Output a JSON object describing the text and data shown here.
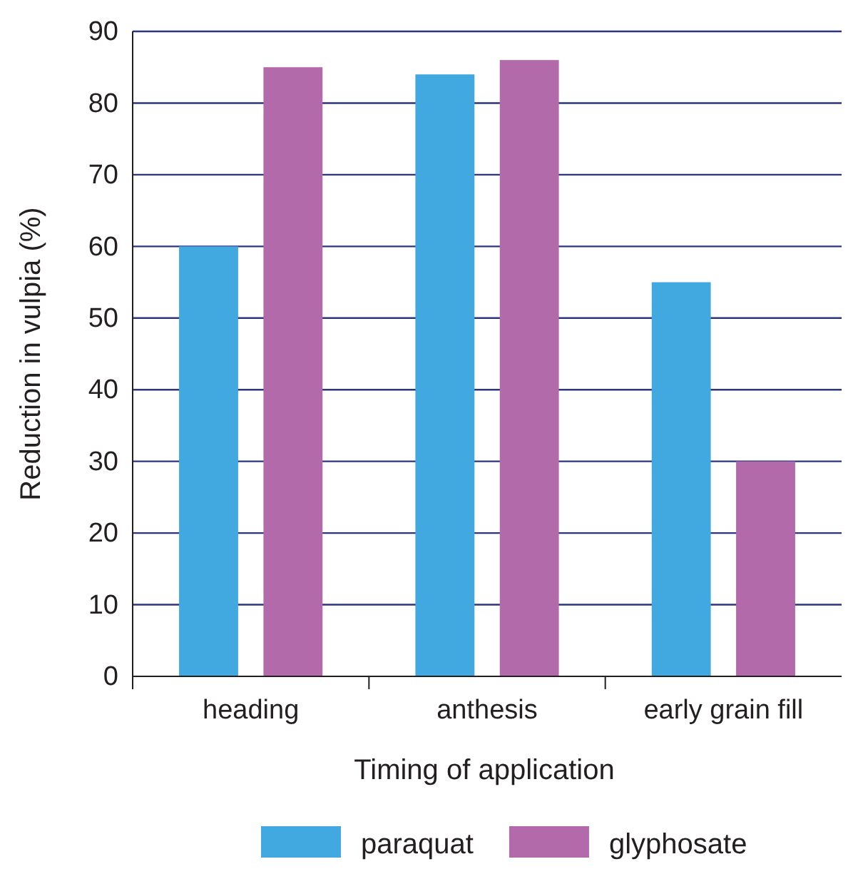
{
  "chart_data": {
    "type": "bar",
    "xlabel": "Timing of application",
    "ylabel": "Reduction in vulpia (%)",
    "categories": [
      "heading",
      "anthesis",
      "early grain fill"
    ],
    "series": [
      {
        "name": "paraquat",
        "color": "#42a8e0",
        "values": [
          60,
          84,
          55
        ]
      },
      {
        "name": "glyphosate",
        "color": "#b36aab",
        "values": [
          85,
          86,
          30
        ]
      }
    ],
    "ylim": [
      0,
      90
    ],
    "yticks": [
      0,
      10,
      20,
      30,
      40,
      50,
      60,
      70,
      80,
      90
    ],
    "grid": "y",
    "legend": "bottom"
  }
}
